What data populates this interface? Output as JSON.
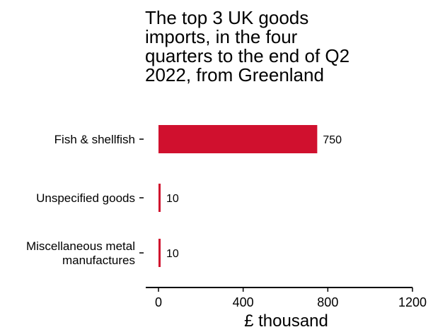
{
  "chart_data": {
    "type": "bar",
    "orientation": "horizontal",
    "title": "The top 3 UK goods imports, in the four quarters to the end of Q2 2022, from Greenland",
    "title_lines": [
      "The top 3 UK goods",
      "imports, in the four",
      "quarters to the end of Q2",
      "2022, from Greenland"
    ],
    "categories": [
      {
        "lines": [
          "Fish & shellfish"
        ]
      },
      {
        "lines": [
          "Unspecified goods"
        ]
      },
      {
        "lines": [
          "Miscellaneous metal",
          "manufactures"
        ]
      }
    ],
    "category_names": [
      "Fish & shellfish",
      "Unspecified goods",
      "Miscellaneous metal manufactures"
    ],
    "values": [
      750,
      10,
      10
    ],
    "data_labels": [
      "750",
      "10",
      "10"
    ],
    "xlabel": "£ thousand",
    "xlim": [
      -60,
      1200
    ],
    "xticks": [
      0,
      400,
      800,
      1200
    ],
    "xtick_labels": [
      "0",
      "400",
      "800",
      "1200"
    ],
    "bar_color": "#d0102e",
    "grid": false,
    "legend": "none"
  }
}
